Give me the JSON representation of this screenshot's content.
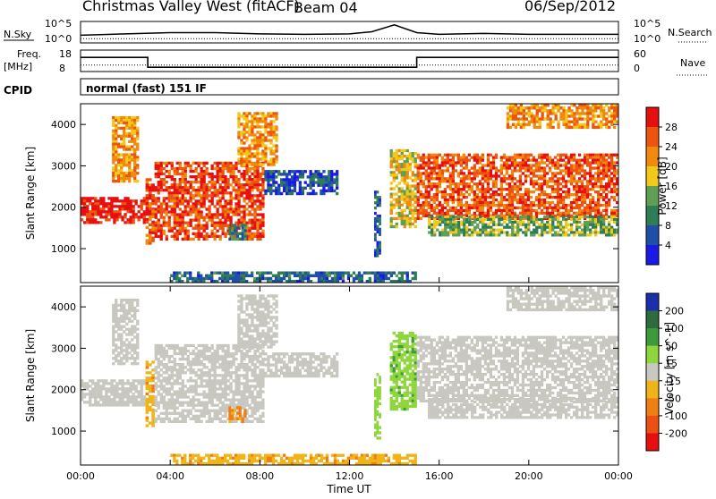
{
  "header": {
    "station": "Christmas Valley West (fitACF)",
    "beam": "Beam 04",
    "date": "06/Sep/2012"
  },
  "sky_panel": {
    "left_label": "N.Sky",
    "right_label": "N.Search",
    "tick_top": "10^5",
    "tick_bottom": "10^0"
  },
  "freq_panel": {
    "left_label_1": "Freq.",
    "left_label_2": "[MHz]",
    "right_label": "Nave",
    "left_ticks": [
      "18",
      "8"
    ],
    "right_ticks": [
      "60",
      "0"
    ]
  },
  "cpid": {
    "label": "CPID",
    "mode": "normal (fast) 151 IF"
  },
  "x_axis": {
    "label": "Time UT",
    "ticks": [
      "00:00",
      "04:00",
      "08:00",
      "12:00",
      "16:00",
      "20:00",
      "00:00"
    ]
  },
  "y_axis": {
    "label": "Slant Range [km]",
    "ticks": [
      "1000",
      "2000",
      "3000",
      "4000"
    ]
  },
  "power_scale": {
    "label": "Power [dB]",
    "ticks": [
      "4",
      "8",
      "12",
      "16",
      "20",
      "24",
      "28"
    ],
    "colors": [
      "#1a1ae6",
      "#1f4fa8",
      "#2e7d54",
      "#5f9e53",
      "#f2c81a",
      "#f08a0f",
      "#ec5410",
      "#e61010"
    ]
  },
  "velocity_scale": {
    "label": "Velocity [m s^-1]",
    "ticks": [
      "200",
      "100",
      "50",
      "15",
      "-15",
      "-50",
      "-100",
      "-200"
    ],
    "colors": [
      "#1d2fa8",
      "#2f6c3d",
      "#3d9a3d",
      "#8fd63d",
      "#c8c8c0",
      "#f0b419",
      "#ef7f14",
      "#ec4f12",
      "#e61010"
    ]
  },
  "chart_data": [
    {
      "type": "heatmap",
      "title": "Power",
      "xlabel": "Time UT",
      "ylabel": "Slant Range [km]",
      "xlim": [
        0,
        24
      ],
      "ylim": [
        180,
        4500
      ],
      "colorbar_label": "Power [dB]",
      "colorbar_range": [
        0,
        32
      ],
      "echo_regions": [
        {
          "t0": 0.0,
          "t1": 2.9,
          "r0": 1600,
          "r1": 2250,
          "value": 30
        },
        {
          "t0": 2.9,
          "t1": 3.3,
          "r0": 1100,
          "r1": 2700,
          "value": 26
        },
        {
          "t0": 3.3,
          "t1": 8.2,
          "r0": 1200,
          "r1": 3100,
          "value": 27
        },
        {
          "t0": 1.4,
          "t1": 2.6,
          "r0": 2600,
          "r1": 4200,
          "value": 22
        },
        {
          "t0": 7.0,
          "t1": 8.8,
          "r0": 3000,
          "r1": 4300,
          "value": 22
        },
        {
          "t0": 6.6,
          "t1": 7.4,
          "r0": 1200,
          "r1": 1600,
          "value": 10
        },
        {
          "t0": 8.2,
          "t1": 11.5,
          "r0": 2300,
          "r1": 2900,
          "value": 6
        },
        {
          "t0": 13.1,
          "t1": 13.4,
          "r0": 800,
          "r1": 2400,
          "value": 7
        },
        {
          "t0": 13.8,
          "t1": 15.0,
          "r0": 1500,
          "r1": 3400,
          "value": 18
        },
        {
          "t0": 15.0,
          "t1": 24.0,
          "r0": 1700,
          "r1": 3300,
          "value": 26
        },
        {
          "t0": 15.5,
          "t1": 24.0,
          "r0": 1300,
          "r1": 1800,
          "value": 14
        },
        {
          "t0": 19.0,
          "t1": 24.0,
          "r0": 3900,
          "r1": 4500,
          "value": 22
        },
        {
          "t0": 4.0,
          "t1": 15.0,
          "r0": 180,
          "r1": 450,
          "value": 8
        }
      ]
    },
    {
      "type": "heatmap",
      "title": "Velocity",
      "xlabel": "Time UT",
      "ylabel": "Slant Range [km]",
      "xlim": [
        0,
        24
      ],
      "ylim": [
        180,
        4500
      ],
      "colorbar_label": "Velocity [m s^-1]",
      "colorbar_range": [
        -250,
        250
      ],
      "echo_regions": [
        {
          "t0": 0.0,
          "t1": 2.9,
          "r0": 1600,
          "r1": 2250,
          "value": 0
        },
        {
          "t0": 2.9,
          "t1": 3.3,
          "r0": 1100,
          "r1": 2700,
          "value": -40
        },
        {
          "t0": 3.3,
          "t1": 8.2,
          "r0": 1200,
          "r1": 3100,
          "value": 0
        },
        {
          "t0": 1.4,
          "t1": 2.6,
          "r0": 2600,
          "r1": 4200,
          "value": 0
        },
        {
          "t0": 7.0,
          "t1": 8.8,
          "r0": 3000,
          "r1": 4300,
          "value": 0
        },
        {
          "t0": 6.6,
          "t1": 7.4,
          "r0": 1200,
          "r1": 1600,
          "value": -60
        },
        {
          "t0": 8.2,
          "t1": 11.5,
          "r0": 2300,
          "r1": 2900,
          "value": 0
        },
        {
          "t0": 13.1,
          "t1": 13.4,
          "r0": 800,
          "r1": 2400,
          "value": 30
        },
        {
          "t0": 13.8,
          "t1": 15.0,
          "r0": 1500,
          "r1": 3400,
          "value": 40
        },
        {
          "t0": 15.0,
          "t1": 24.0,
          "r0": 1700,
          "r1": 3300,
          "value": 0
        },
        {
          "t0": 15.5,
          "t1": 24.0,
          "r0": 1300,
          "r1": 1800,
          "value": 0
        },
        {
          "t0": 19.0,
          "t1": 24.0,
          "r0": 3900,
          "r1": 4500,
          "value": 0
        },
        {
          "t0": 4.0,
          "t1": 15.0,
          "r0": 180,
          "r1": 450,
          "value": -40
        }
      ]
    },
    {
      "type": "line",
      "title": "N.Sky / N.Search",
      "xlim": [
        0,
        24
      ],
      "series": [
        {
          "name": "N.Sky",
          "x": [
            0,
            2,
            4,
            6,
            8,
            10,
            12,
            13,
            14,
            15,
            16,
            18,
            20,
            22,
            24
          ],
          "values": [
            1.8,
            2.1,
            2.4,
            2.4,
            2.1,
            2.0,
            2.1,
            2.6,
            4.2,
            2.4,
            2.0,
            2.2,
            2.0,
            2.0,
            2.0
          ]
        },
        {
          "name": "N.Search",
          "x": [
            0,
            24
          ],
          "values": [
            1.0,
            1.0
          ]
        }
      ]
    },
    {
      "type": "line",
      "title": "Freq / Nave",
      "xlim": [
        0,
        24
      ],
      "series": [
        {
          "name": "Freq.",
          "x": [
            0,
            3.0,
            3.0,
            15.0,
            15.0,
            24
          ],
          "values": [
            14.6,
            14.6,
            10.0,
            10.0,
            14.6,
            14.6
          ]
        },
        {
          "name": "Nave",
          "x": [
            0,
            24
          ],
          "values": [
            18,
            18
          ]
        }
      ]
    }
  ]
}
